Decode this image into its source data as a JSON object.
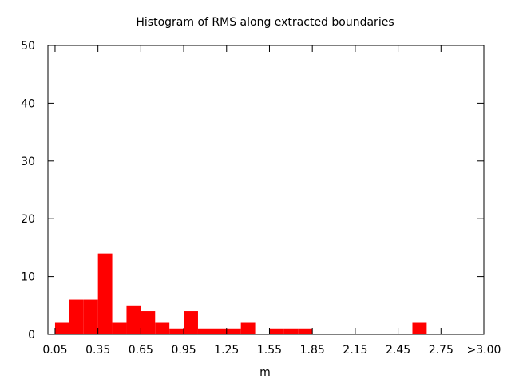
{
  "chart_data": {
    "type": "bar",
    "title": "Histogram of RMS along extracted boundaries",
    "xlabel": "m",
    "ylabel": "",
    "xlim": [
      0.0,
      3.05
    ],
    "ylim": [
      0,
      50
    ],
    "x_ticks": [
      "0.05",
      "0.35",
      "0.65",
      "0.95",
      "1.25",
      "1.55",
      "1.85",
      "2.15",
      "2.45",
      "2.75",
      ">3.00"
    ],
    "y_ticks": [
      "0",
      "10",
      "20",
      "30",
      "40",
      "50"
    ],
    "bin_width": 0.1,
    "bins": [
      {
        "x": 0.1,
        "value": 2
      },
      {
        "x": 0.2,
        "value": 6
      },
      {
        "x": 0.3,
        "value": 6
      },
      {
        "x": 0.4,
        "value": 14
      },
      {
        "x": 0.5,
        "value": 2
      },
      {
        "x": 0.6,
        "value": 5
      },
      {
        "x": 0.7,
        "value": 4
      },
      {
        "x": 0.8,
        "value": 2
      },
      {
        "x": 0.9,
        "value": 1
      },
      {
        "x": 1.0,
        "value": 4
      },
      {
        "x": 1.1,
        "value": 1
      },
      {
        "x": 1.2,
        "value": 1
      },
      {
        "x": 1.3,
        "value": 1
      },
      {
        "x": 1.4,
        "value": 2
      },
      {
        "x": 1.6,
        "value": 1
      },
      {
        "x": 1.7,
        "value": 1
      },
      {
        "x": 1.8,
        "value": 1
      },
      {
        "x": 2.6,
        "value": 2
      }
    ],
    "bar_color": "#ff0000",
    "grid": false,
    "legend": "none"
  }
}
